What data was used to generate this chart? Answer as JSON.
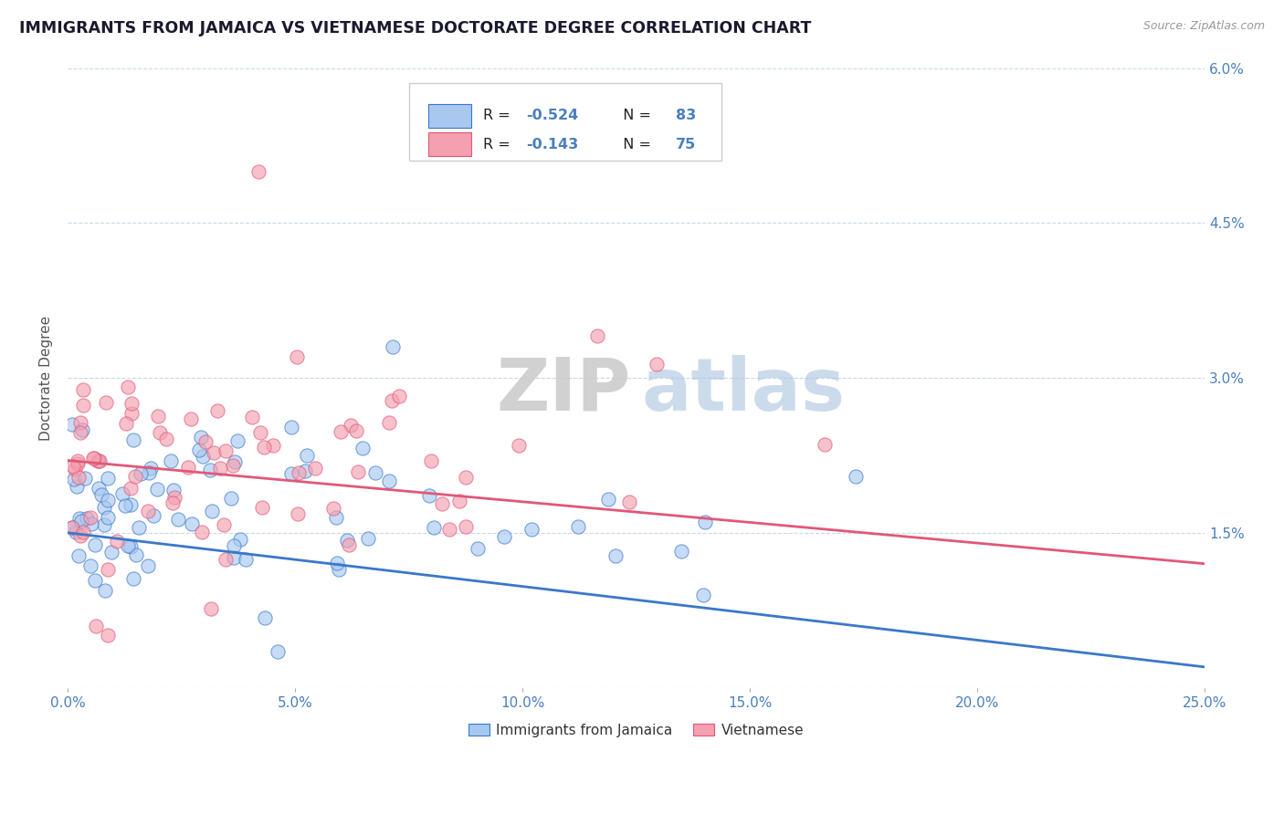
{
  "title": "IMMIGRANTS FROM JAMAICA VS VIETNAMESE DOCTORATE DEGREE CORRELATION CHART",
  "source": "Source: ZipAtlas.com",
  "xlabel_jamaica": "Immigrants from Jamaica",
  "xlabel_vietnamese": "Vietnamese",
  "ylabel": "Doctorate Degree",
  "xlim": [
    0.0,
    0.25
  ],
  "ylim": [
    0.0,
    0.06
  ],
  "xtick_vals": [
    0.0,
    0.05,
    0.1,
    0.15,
    0.2,
    0.25
  ],
  "xtick_labels": [
    "0.0%",
    "5.0%",
    "10.0%",
    "15.0%",
    "20.0%",
    "25.0%"
  ],
  "ytick_vals": [
    0.0,
    0.015,
    0.03,
    0.045,
    0.06
  ],
  "ytick_labels": [
    "",
    "1.5%",
    "3.0%",
    "4.5%",
    "6.0%"
  ],
  "legend_R1": "-0.524",
  "legend_N1": "83",
  "legend_R2": "-0.143",
  "legend_N2": "75",
  "color_jamaica": "#a8c8f0",
  "color_vietnamese": "#f4a0b0",
  "color_line_jamaica": "#3a78c9",
  "color_line_vietnamese": "#e05878",
  "color_text_blue": "#4a7fbe",
  "color_title": "#1a1a2e",
  "watermark_zip": "ZIP",
  "watermark_atlas": "atlas",
  "grid_color": "#c8d8e8",
  "trendline_jamaica_start": 0.015,
  "trendline_jamaica_end": 0.002,
  "trendline_vietnamese_start": 0.022,
  "trendline_vietnamese_end": 0.012
}
